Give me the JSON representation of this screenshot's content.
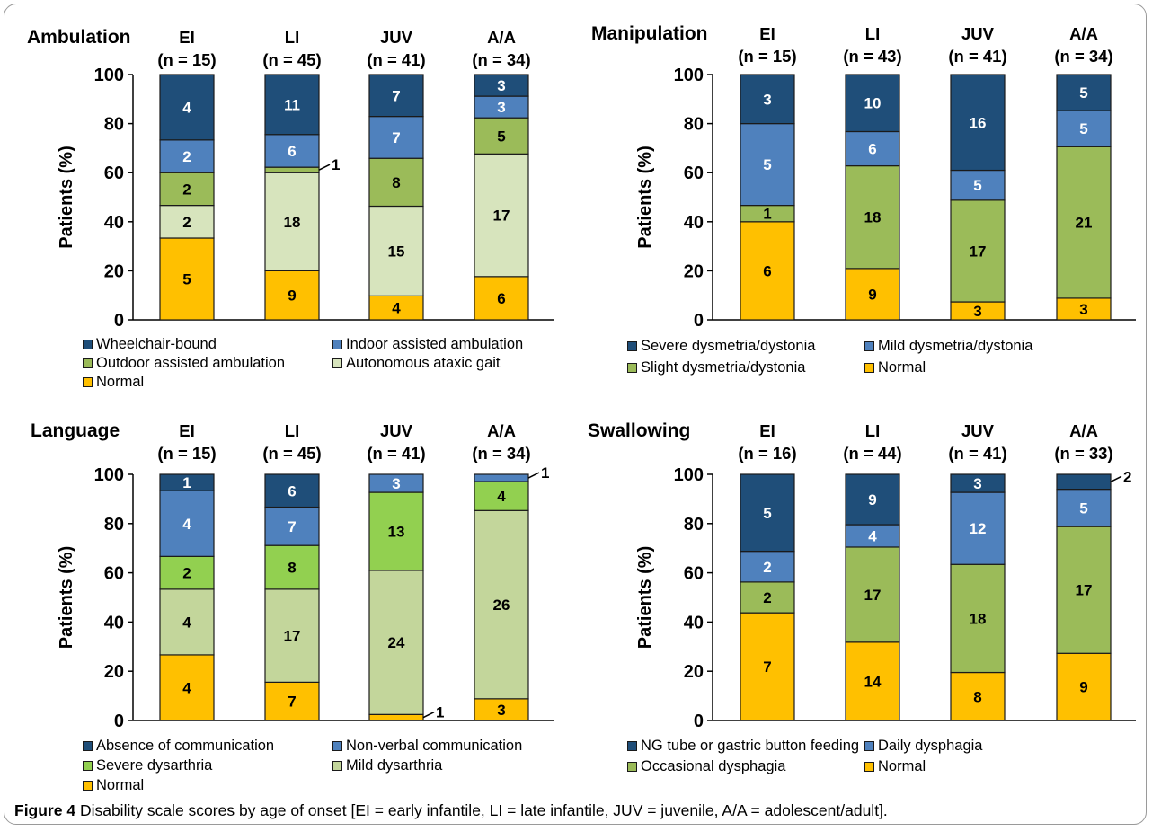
{
  "caption": {
    "label": "Figure 4",
    "text": " Disability scale scores by age of onset  [EI = early infantile, LI = late infantile, JUV = juvenile, A/A = adolescent/adult]."
  },
  "colors": {
    "dark_blue": "#1F4E79",
    "mid_blue": "#4F81BD",
    "green": "#9BBB59",
    "bright_green": "#92D050",
    "pale_green": "#D7E4BD",
    "light_green": "#C3D69B",
    "yellow": "#FFC000"
  },
  "chart_data": [
    {
      "type": "bar",
      "stacked": true,
      "title": "Ambulation",
      "ylabel": "Patients (%)",
      "ylim": [
        0,
        100
      ],
      "yticks": [
        "0",
        "20",
        "40",
        "60",
        "80",
        "100"
      ],
      "categories": [
        "EI",
        "LI",
        "JUV",
        "A/A"
      ],
      "n_labels": [
        "(n = 15)",
        "(n = 45)",
        "(n = 41)",
        "(n = 34)"
      ],
      "series": [
        {
          "name": "Normal",
          "color": "#FFC000",
          "counts": [
            5,
            9,
            4,
            6
          ],
          "labels": [
            "5",
            "9",
            "4",
            "6"
          ]
        },
        {
          "name": "Autonomous ataxic gait",
          "color": "#D7E4BD",
          "counts": [
            2,
            18,
            15,
            17
          ],
          "labels": [
            "2",
            "18",
            "15",
            "17"
          ]
        },
        {
          "name": "Outdoor assisted ambulation",
          "color": "#9BBB59",
          "counts": [
            2,
            1,
            8,
            5
          ],
          "labels": [
            "2",
            "1",
            "8",
            "5"
          ]
        },
        {
          "name": "Indoor assisted ambulation",
          "color": "#4F81BD",
          "counts": [
            2,
            6,
            7,
            3
          ],
          "labels": [
            "2",
            "6",
            "7",
            "3"
          ]
        },
        {
          "name": "Wheelchair-bound",
          "color": "#1F4E79",
          "counts": [
            4,
            11,
            7,
            3
          ],
          "labels": [
            "4",
            "11",
            "7",
            "3"
          ]
        }
      ],
      "legend_order": [
        "Wheelchair-bound",
        "Indoor assisted ambulation",
        "Outdoor assisted ambulation",
        "Autonomous ataxic gait",
        "Normal"
      ]
    },
    {
      "type": "bar",
      "stacked": true,
      "title": "Manipulation",
      "ylabel": "Patients (%)",
      "ylim": [
        0,
        100
      ],
      "yticks": [
        "0",
        "20",
        "40",
        "60",
        "80",
        "100"
      ],
      "categories": [
        "EI",
        "LI",
        "JUV",
        "A/A"
      ],
      "n_labels": [
        "(n = 15)",
        "(n = 43)",
        "(n = 41)",
        "(n = 34)"
      ],
      "series": [
        {
          "name": "Normal",
          "color": "#FFC000",
          "counts": [
            6,
            9,
            3,
            3
          ],
          "labels": [
            "6",
            "9",
            "3",
            "3"
          ]
        },
        {
          "name": "Slight dysmetria/dystonia",
          "color": "#9BBB59",
          "counts": [
            1,
            18,
            17,
            21
          ],
          "labels": [
            "1",
            "18",
            "17",
            "21"
          ]
        },
        {
          "name": "Mild dysmetria/dystonia",
          "color": "#4F81BD",
          "counts": [
            5,
            6,
            5,
            5
          ],
          "labels": [
            "5",
            "6",
            "5",
            "5"
          ]
        },
        {
          "name": "Severe dysmetria/dystonia",
          "color": "#1F4E79",
          "counts": [
            3,
            10,
            16,
            5
          ],
          "labels": [
            "3",
            "10",
            "16",
            "5"
          ]
        }
      ],
      "legend_order": [
        "Severe dysmetria/dystonia",
        "Mild dysmetria/dystonia",
        "Slight dysmetria/dystonia",
        "Normal"
      ]
    },
    {
      "type": "bar",
      "stacked": true,
      "title": "Language",
      "ylabel": "Patients (%)",
      "ylim": [
        0,
        100
      ],
      "yticks": [
        "0",
        "20",
        "40",
        "60",
        "80",
        "100"
      ],
      "categories": [
        "EI",
        "LI",
        "JUV",
        "A/A"
      ],
      "n_labels": [
        "(n = 15)",
        "(n = 45)",
        "(n = 41)",
        "(n = 34)"
      ],
      "series": [
        {
          "name": "Normal",
          "color": "#FFC000",
          "counts": [
            4,
            7,
            1,
            3
          ],
          "labels": [
            "4",
            "7",
            "1",
            "3"
          ]
        },
        {
          "name": "Mild dysarthria",
          "color": "#C3D69B",
          "counts": [
            4,
            17,
            24,
            26
          ],
          "labels": [
            "4",
            "17",
            "24",
            "26"
          ]
        },
        {
          "name": "Severe dysarthria",
          "color": "#92D050",
          "counts": [
            2,
            8,
            13,
            4
          ],
          "labels": [
            "2",
            "8",
            "13",
            "4"
          ]
        },
        {
          "name": "Non-verbal communication",
          "color": "#4F81BD",
          "counts": [
            4,
            7,
            3,
            1
          ],
          "labels": [
            "4",
            "7",
            "3",
            "1"
          ]
        },
        {
          "name": "Absence of communication",
          "color": "#1F4E79",
          "counts": [
            1,
            6,
            0,
            0
          ],
          "labels": [
            "1",
            "6",
            "",
            ""
          ]
        }
      ],
      "legend_order": [
        "Absence of communication",
        "Non-verbal communication",
        "Severe dysarthria",
        "Mild dysarthria",
        "Normal"
      ]
    },
    {
      "type": "bar",
      "stacked": true,
      "title": "Swallowing",
      "ylabel": "Patients (%)",
      "ylim": [
        0,
        100
      ],
      "yticks": [
        "0",
        "20",
        "40",
        "60",
        "80",
        "100"
      ],
      "categories": [
        "EI",
        "LI",
        "JUV",
        "A/A"
      ],
      "n_labels": [
        "(n = 16)",
        "(n = 44)",
        "(n = 41)",
        "(n = 33)"
      ],
      "series": [
        {
          "name": "Normal",
          "color": "#FFC000",
          "counts": [
            7,
            14,
            8,
            9
          ],
          "labels": [
            "7",
            "14",
            "8",
            "9"
          ]
        },
        {
          "name": "Occasional dysphagia",
          "color": "#9BBB59",
          "counts": [
            2,
            17,
            18,
            17
          ],
          "labels": [
            "2",
            "17",
            "18",
            "17"
          ]
        },
        {
          "name": "Daily dysphagia",
          "color": "#4F81BD",
          "counts": [
            2,
            4,
            12,
            5
          ],
          "labels": [
            "2",
            "4",
            "12",
            "5"
          ]
        },
        {
          "name": "NG tube or gastric button feeding",
          "color": "#1F4E79",
          "counts": [
            5,
            9,
            3,
            2
          ],
          "labels": [
            "5",
            "9",
            "3",
            "2"
          ]
        }
      ],
      "legend_order": [
        "NG tube or gastric button feeding",
        "Daily dysphagia",
        "Occasional dysphagia",
        "Normal"
      ]
    }
  ]
}
